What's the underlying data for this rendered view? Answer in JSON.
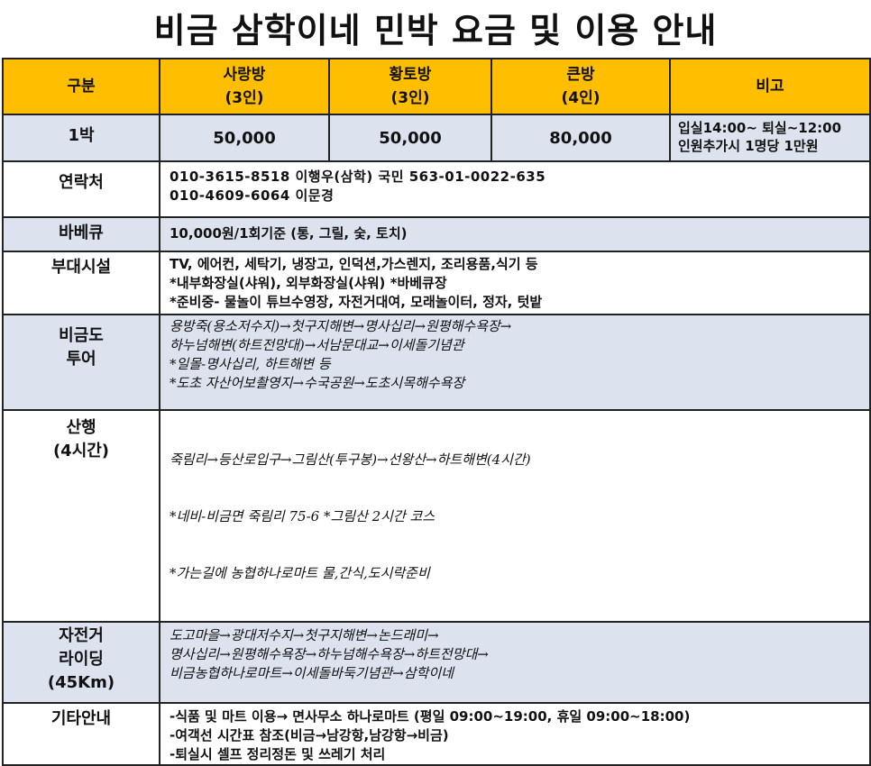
{
  "title": "비금 삼학이네 민박 요금 및 이용 안내",
  "header": {
    "col1": "구분",
    "col2": [
      "사랑방",
      "(3인)"
    ],
    "col3": [
      "황토방",
      "(3인)"
    ],
    "col4": [
      "큰방",
      "(4인)"
    ],
    "col5": "비고"
  },
  "price_row": {
    "label": "1박",
    "prices": [
      "50,000",
      "50,000",
      "80,000"
    ],
    "notes": [
      "입실14:00~ 퇴실~12:00",
      "인원추가시 1명당 1만원"
    ]
  },
  "contact": {
    "label": "연락처",
    "lines": [
      "010-3615-8518 이행우(삼학)  국민 563-01-0022-635",
      "010-4609-6064 이문경"
    ]
  },
  "bbq": {
    "label": "바베큐",
    "lines": [
      "10,000원/1회기준 (통, 그릴, 숯, 토치)"
    ]
  },
  "facilities": {
    "label": "부대시설",
    "lines": [
      "TV, 에어컨, 세탁기, 냉장고, 인덕션,가스렌지, 조리용품,식기 등",
      "*내부화장실(샤워), 외부화장실(샤워) *바베큐장",
      "*준비중- 물놀이 튜브수영장, 자전거대여, 모래놀이터, 정자, 텃밭"
    ]
  },
  "tour": {
    "label": [
      "비금도",
      "투어"
    ],
    "lines": [
      "용방죽(용소저수지)→첫구지해변→명사십리→원평해수욕장→",
      "하누넘해변(하트전망대)→서남문대교→이세돌기념관",
      "*일몰-명사십리, 하트해변 등",
      "*도초 자산어보촬영지→수국공원→도초시목해수욕장"
    ]
  },
  "hiking": {
    "label": [
      "산행",
      "(4시간)"
    ],
    "lines": [
      "죽림리→등산로입구→그림산(투구봉)→선왕산→하트해변(4시간)",
      " *네비-비금면 죽림리 75-6     *그림산 2시간 코스",
      " *가는길에 농협하나로마트 물,간식,도시락준비"
    ]
  },
  "riding": {
    "label": [
      "자전거",
      "라이딩",
      "(45Km)"
    ],
    "lines": [
      "도고마을→광대저수지→첫구지해변→논드래미→",
      "명사십리→원평해수욕장→하누넘해수욕장→하트전망대→",
      "비금농협하나로마트→이세돌바둑기념관→삼학이네"
    ]
  },
  "etc": {
    "label": "기타안내",
    "lines": [
      "-식품 및 마트 이용→ 면사무소 하나로마트 (평일 09:00~19:00,  휴일 09:00~18:00)",
      "-여객선 시간표 참조(비금→남강항,남강항→비금)",
      "-퇴실시 셀프 정리정돈 및 쓰레기 처리"
    ]
  }
}
